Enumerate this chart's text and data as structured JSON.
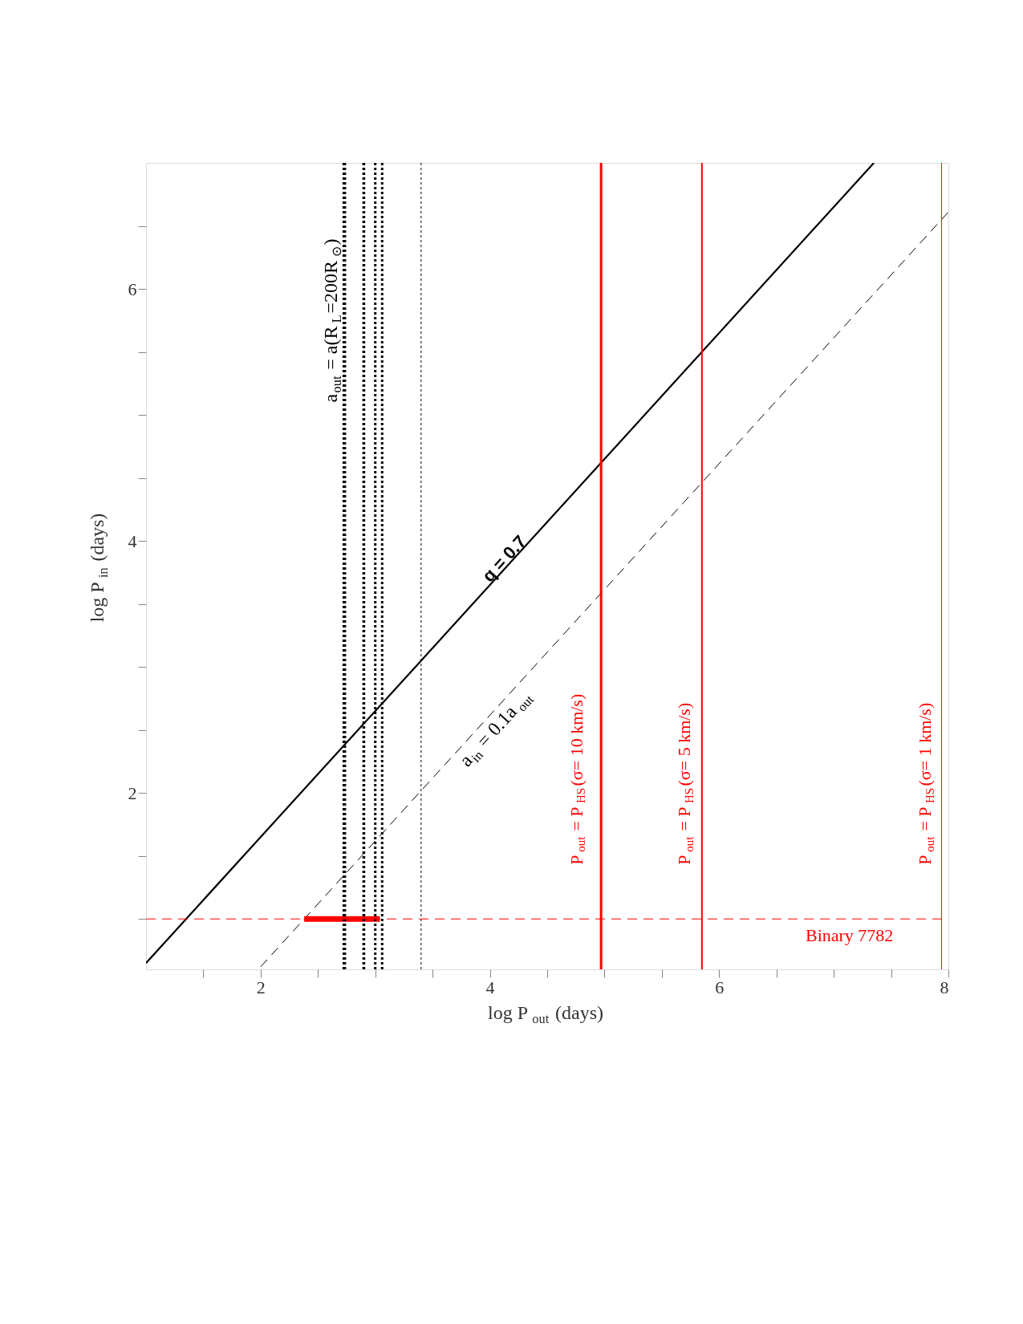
{
  "chart_data": {
    "type": "line",
    "xlabel": "log P$_{out}$ (days)",
    "ylabel": "log P$_{in}$ (days)",
    "xlim": [
      1,
      8
    ],
    "ylim": [
      0.6,
      7
    ],
    "xticks": [
      {
        "value": 1.5,
        "label": null
      },
      2,
      {
        "value": 2.5,
        "label": null
      },
      {
        "value": 3,
        "label": null
      },
      {
        "value": 3.5,
        "label": null
      },
      4,
      {
        "value": 4.5,
        "label": null
      },
      {
        "value": 5,
        "label": null
      },
      {
        "value": 5.5,
        "label": null
      },
      6,
      {
        "value": 6.5,
        "label": null
      },
      {
        "value": 7,
        "label": null
      },
      {
        "value": 7.5,
        "label": null
      },
      8
    ],
    "yticks": [
      {
        "value": 1,
        "label": null
      },
      {
        "value": 1.5,
        "label": null
      },
      2,
      {
        "value": 2.5,
        "label": null
      },
      {
        "value": 3,
        "label": null
      },
      {
        "value": 3.5,
        "label": null
      },
      4,
      {
        "value": 4.5,
        "label": null
      },
      {
        "value": 5,
        "label": null
      },
      {
        "value": 5.5,
        "label": null
      },
      6,
      {
        "value": 6.5,
        "label": null
      }
    ],
    "grid": false,
    "marker": "none",
    "series": [
      {
        "color": "#000000",
        "x": [
          1,
          7.35
        ],
        "values": [
          0.65,
          7
        ],
        "line_style": "solid"
      },
      {
        "color": "#000000",
        "x": [
          2,
          8
        ],
        "values": [
          0.62,
          6.61
        ],
        "line_style": "dashed"
      },
      {
        "color": "#ff0000",
        "x": [
          2.38,
          3.04
        ],
        "values": [
          1.0,
          1.0
        ],
        "line_style": "solid"
      }
    ],
    "ref_lines": [
      {
        "axis": "x",
        "value": 2.73,
        "color": "#000000",
        "line_style": "dotted"
      },
      {
        "axis": "x",
        "value": 2.9,
        "color": "#000000",
        "line_style": "dotted"
      },
      {
        "axis": "x",
        "value": 3.0,
        "color": "#000000",
        "line_style": "dotted"
      },
      {
        "axis": "x",
        "value": 3.06,
        "color": "#000000",
        "line_style": "dotted"
      },
      {
        "axis": "x",
        "value": 3.4,
        "color": "#000000",
        "line_style": "dotted"
      },
      {
        "axis": "x",
        "value": 4.97,
        "color": "#ff0000",
        "line_style": "solid"
      },
      {
        "axis": "x",
        "value": 5.85,
        "color": "#ff0000",
        "line_style": "solid"
      },
      {
        "axis": "x",
        "value": 7.94,
        "color": "#ff0000",
        "line_style": "solid"
      },
      {
        "axis": "y",
        "value": 1.0,
        "color": "#ff0000",
        "line_style": "dashed"
      }
    ],
    "annotations": [
      "a$_{out}$ = a(R$_{L}$=200R$_{⊙}$)",
      "q = 0.7",
      "a$_{in}$ = 0.1a$_{out}$",
      "P$_{out}$ = P$_{HS}$(σ= 10 km/s)",
      "P$_{out}$ = P$_{HS}$(σ= 5 km/s)",
      "P$_{out}$ = P$_{HS}$(σ= 1 km/s)",
      "Binary 7782"
    ]
  }
}
